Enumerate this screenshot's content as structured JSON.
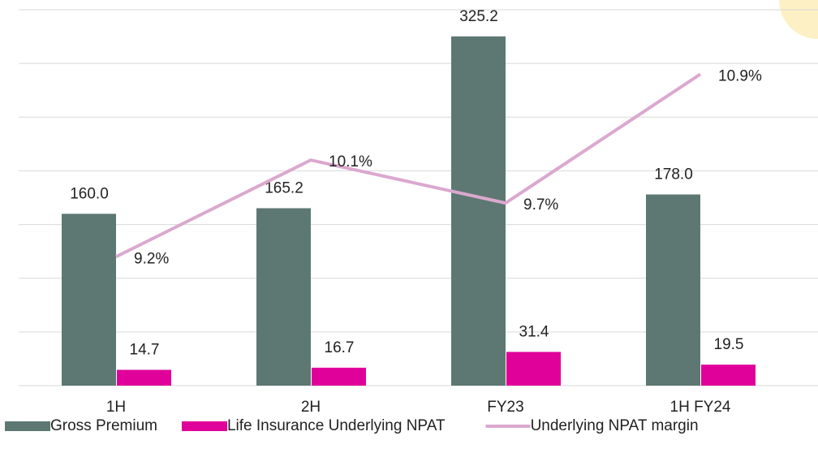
{
  "chart_data": {
    "type": "bar-line",
    "categories": [
      "1H",
      "2H",
      "FY23",
      "1H FY24"
    ],
    "series": [
      {
        "name": "Gross Premium",
        "type": "bar",
        "color": "#5d7872",
        "values": [
          160.0,
          165.2,
          325.2,
          178.0
        ],
        "value_labels": [
          "160.0",
          "165.2",
          "325.2",
          "178.0"
        ]
      },
      {
        "name": "Life Insurance Underlying NPAT",
        "type": "bar",
        "color": "#e0009a",
        "values": [
          14.7,
          16.7,
          31.4,
          19.5
        ]
      },
      {
        "name": "Underlying NPAT margin",
        "type": "line",
        "axis": "y2",
        "color": "#dba8cf",
        "values": [
          9.2,
          10.1,
          9.7,
          10.9
        ],
        "value_labels": [
          "9.2%",
          "10.1%",
          "9.7%",
          "10.9%"
        ]
      }
    ],
    "ylim": [
      0,
      350
    ],
    "yticks": [
      0,
      50,
      100,
      150,
      200,
      250,
      300,
      350
    ],
    "y2lim": [
      8,
      11.5
    ],
    "grid": true,
    "legend": "bottom"
  }
}
